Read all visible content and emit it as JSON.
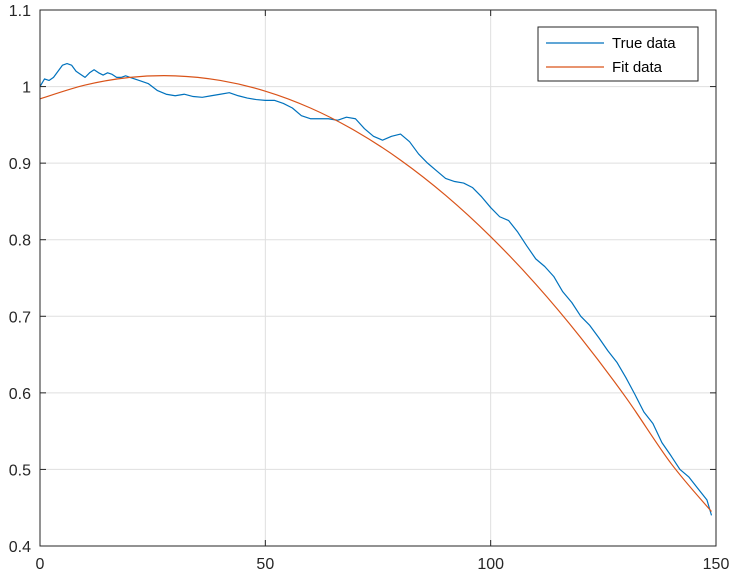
{
  "chart_data": {
    "type": "line",
    "title": "",
    "xlabel": "",
    "ylabel": "",
    "xlim": [
      0,
      150
    ],
    "ylim": [
      0.4,
      1.1
    ],
    "xticks": [
      0,
      50,
      100,
      150
    ],
    "yticks": [
      0.4,
      0.5,
      0.6,
      0.7,
      0.8,
      0.9,
      1.0,
      1.1
    ],
    "xtick_labels": [
      "0",
      "50",
      "100",
      "150"
    ],
    "ytick_labels": [
      "0.4",
      "0.5",
      "0.6",
      "0.7",
      "0.8",
      "0.9",
      "1",
      "1.1"
    ],
    "grid": true,
    "legend_position": "top-right",
    "series": [
      {
        "name": "True data",
        "color": "#0072BD",
        "x": [
          0,
          1,
          2,
          3,
          4,
          5,
          6,
          7,
          8,
          9,
          10,
          11,
          12,
          13,
          14,
          15,
          16,
          17,
          18,
          19,
          20,
          22,
          24,
          26,
          28,
          30,
          32,
          34,
          36,
          38,
          40,
          42,
          44,
          46,
          48,
          50,
          52,
          54,
          56,
          58,
          60,
          62,
          64,
          66,
          68,
          70,
          72,
          74,
          76,
          78,
          80,
          82,
          84,
          86,
          88,
          90,
          92,
          94,
          96,
          98,
          100,
          102,
          104,
          106,
          108,
          110,
          112,
          114,
          116,
          118,
          120,
          122,
          124,
          126,
          128,
          130,
          132,
          134,
          136,
          138,
          140,
          142,
          144,
          146,
          148,
          149
        ],
        "y": [
          1.0,
          1.01,
          1.008,
          1.012,
          1.02,
          1.028,
          1.03,
          1.028,
          1.02,
          1.016,
          1.012,
          1.018,
          1.022,
          1.018,
          1.015,
          1.018,
          1.016,
          1.012,
          1.012,
          1.014,
          1.012,
          1.008,
          1.004,
          0.995,
          0.99,
          0.988,
          0.99,
          0.987,
          0.986,
          0.988,
          0.99,
          0.992,
          0.988,
          0.985,
          0.983,
          0.982,
          0.982,
          0.978,
          0.972,
          0.962,
          0.958,
          0.958,
          0.958,
          0.956,
          0.96,
          0.958,
          0.945,
          0.935,
          0.93,
          0.935,
          0.938,
          0.928,
          0.912,
          0.9,
          0.89,
          0.88,
          0.876,
          0.874,
          0.868,
          0.856,
          0.842,
          0.83,
          0.825,
          0.81,
          0.792,
          0.775,
          0.765,
          0.752,
          0.732,
          0.718,
          0.7,
          0.688,
          0.672,
          0.655,
          0.64,
          0.62,
          0.598,
          0.575,
          0.56,
          0.535,
          0.518,
          0.5,
          0.49,
          0.475,
          0.46,
          0.44
        ]
      },
      {
        "name": "Fit data",
        "color": "#D95319",
        "x": [
          0,
          10,
          20,
          30,
          40,
          50,
          60,
          70,
          80,
          90,
          100,
          110,
          120,
          130,
          140,
          149
        ],
        "y": [
          0.984,
          1.002,
          1.012,
          1.014,
          1.008,
          0.994,
          0.972,
          0.942,
          0.904,
          0.858,
          0.804,
          0.742,
          0.672,
          0.594,
          0.508,
          0.445
        ]
      }
    ]
  }
}
